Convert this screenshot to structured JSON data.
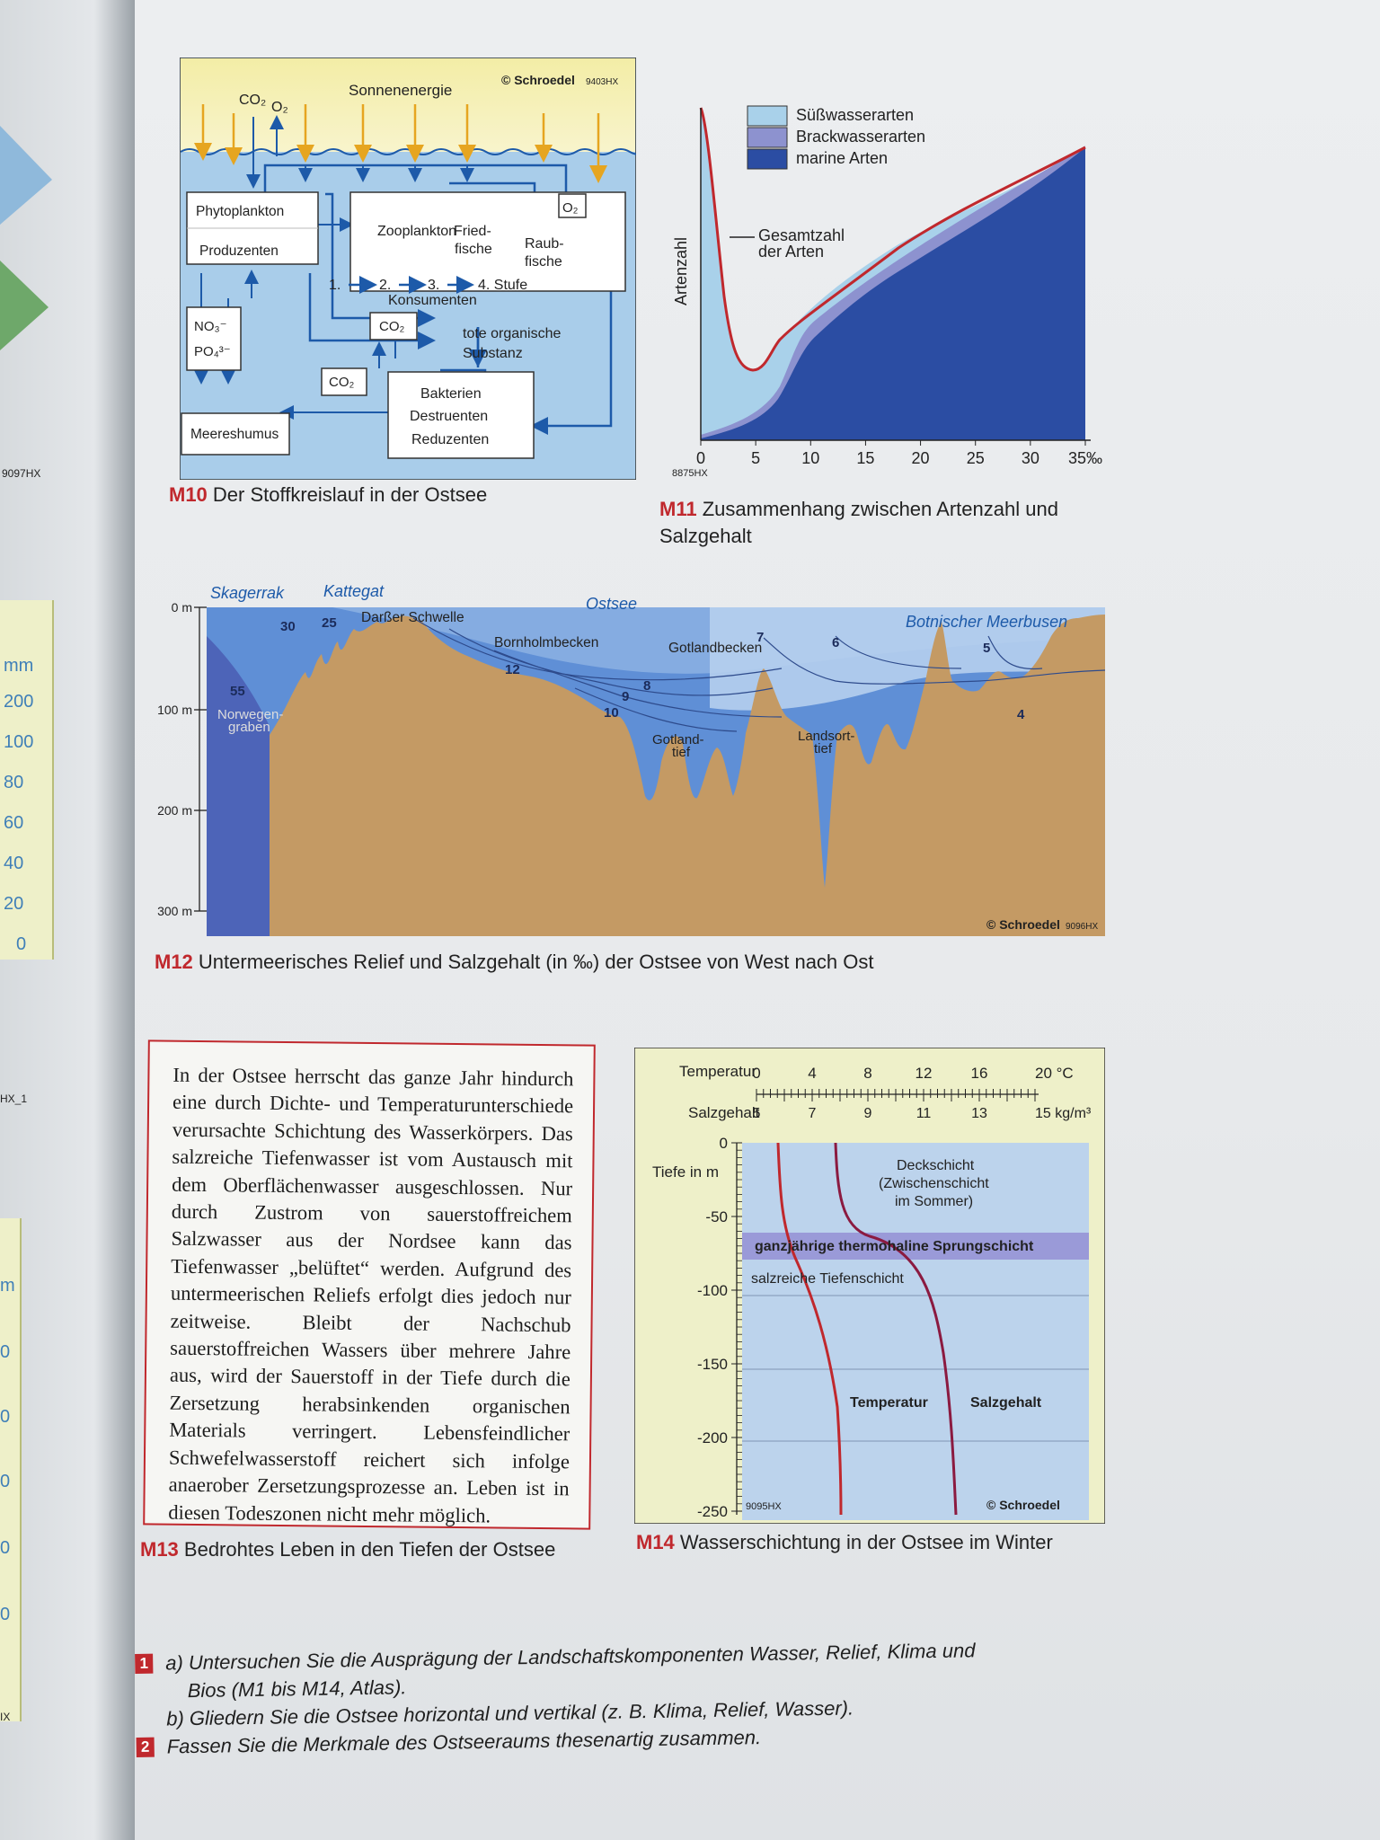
{
  "left_page": {
    "code_label": "9097HX",
    "code_label_2": "HX_1",
    "code_label_3": "IX",
    "scale_unit": "mm",
    "scale_values": [
      "200",
      "100",
      "80",
      "60",
      "40",
      "20",
      "0"
    ],
    "scale2_unit": "m",
    "scale2_values": [
      "0",
      "0",
      "0",
      "0",
      "0"
    ]
  },
  "m10": {
    "copyright": "© Schroedel",
    "code": "9403HX",
    "sun_label": "Sonnenenergie",
    "co2_top": "CO₂",
    "o2_top": "O₂",
    "o2_box": "O₂",
    "phyto": "Phytoplankton",
    "producers": "Produzenten",
    "zooplankton": "Zooplankton",
    "friedfische": [
      "Fried-",
      "fische"
    ],
    "raubfische": [
      "Raub-",
      "fische"
    ],
    "stages": [
      "1.",
      "2.",
      "3.",
      "4. Stufe"
    ],
    "consumers": "Konsumenten",
    "co2_1": "CO₂",
    "co2_2": "CO₂",
    "nutrients": [
      "NO₃⁻",
      "PO₄³⁻"
    ],
    "dead_matter": [
      "tote organische",
      "Substanz"
    ],
    "bacteria": [
      "Bakterien",
      "Destruenten",
      "Reduzenten"
    ],
    "humus": "Meereshumus",
    "caption_ref": "M10",
    "caption_text": " Der Stoffkreislauf in der Ostsee"
  },
  "m11": {
    "code": "8875HX",
    "ylabel": "Artenzahl",
    "legend": [
      "Süßwasserarten",
      "Brackwasserarten",
      "marine Arten"
    ],
    "annotation": [
      "Gesamtzahl",
      "der Arten"
    ],
    "caption_ref": "M11",
    "caption_text": " Zusammenhang zwischen Artenzahl und Salzgehalt",
    "colors": {
      "fresh": "#a9d1ea",
      "brackish": "#8d92cf",
      "marine": "#2b4da3",
      "total": "#c0282d"
    }
  },
  "m12": {
    "copyright": "© Schroedel",
    "code": "9096HX",
    "regions": [
      "Skagerrak",
      "Kattegat",
      "Ostsee",
      "Botnischer Meerbusen"
    ],
    "features": [
      "Darßer Schwelle",
      "Bornholmbecken",
      "Gotlandbecken",
      "Gotland-",
      "tief",
      "Landsort-",
      "tief",
      "Norwegen-",
      "graben"
    ],
    "depth_labels": [
      "0 m",
      "100 m",
      "200 m",
      "300 m"
    ],
    "salinity_labels": [
      "55",
      "30",
      "25",
      "12",
      "10",
      "9",
      "8",
      "7",
      "6",
      "5",
      "4"
    ],
    "caption_ref": "M12",
    "caption_text": " Untermeerisches Relief und Salzgehalt (in ‰) der Ostsee von West nach Ost"
  },
  "m13": {
    "text": "In der Ostsee herrscht das ganze Jahr hindurch eine durch Dichte- und Temperaturunterschiede verursachte Schichtung des Wasserkörpers. Das salzreiche Tiefenwasser ist vom Austausch mit dem Oberflächenwasser ausgeschlossen. Nur durch Zustrom von sauerstoffreichem Salzwasser aus der Nordsee kann das Tiefenwasser „belüftet“ werden. Aufgrund des untermeerischen Reliefs erfolgt dies jedoch nur zeitweise. Bleibt der Nachschub sauerstoffreichen Wassers über mehrere Jahre aus, wird der Sauerstoff in der Tiefe durch die Zersetzung herabsinkenden organischen Materials verringert. Lebensfeindlicher Schwefelwasserstoff reichert sich infolge anaerober Zersetzungsprozesse an. Leben ist in diesen Todeszonen nicht mehr möglich.",
    "caption_ref": "M13",
    "caption_text": " Bedrohtes Leben in den Tiefen der Ostsee"
  },
  "m14": {
    "temp_axis_label": "Temperatur",
    "temp_ticks": [
      "0",
      "4",
      "8",
      "12",
      "16",
      "20 °C"
    ],
    "salt_axis_label": "Salzgehalt",
    "salt_ticks": [
      "5",
      "7",
      "9",
      "11",
      "13",
      "15 kg/m³"
    ],
    "depth_axis_label": "Tiefe in m",
    "depth_ticks": [
      "0",
      "-50",
      "-100",
      "-150",
      "-200",
      "-250"
    ],
    "layer_top": [
      "Deckschicht",
      "(Zwischenschicht",
      "im Sommer)"
    ],
    "layer_jump": "ganzjährige thermohaline Sprungschicht",
    "layer_deep": "salzreiche Tiefenschicht",
    "curve_labels": [
      "Temperatur",
      "Salzgehalt"
    ],
    "code": "9095HX",
    "copyright": "© Schroedel",
    "caption_ref": "M14",
    "caption_text": " Wasserschichtung in der Ostsee im Winter"
  },
  "tasks": {
    "t1_num": "1",
    "t1a": "a) Untersuchen Sie die Ausprägung der Landschaftskomponenten Wasser, Relief, Klima und",
    "t1a_cont": "Bios (M1 bis M14, Atlas).",
    "t1b": "b) Gliedern Sie die Ostsee horizontal und vertikal (z. B. Klima, Relief, Wasser).",
    "t2_num": "2",
    "t2": "Fassen Sie die Merkmale des Ostseeraums thesenartig zusammen."
  }
}
